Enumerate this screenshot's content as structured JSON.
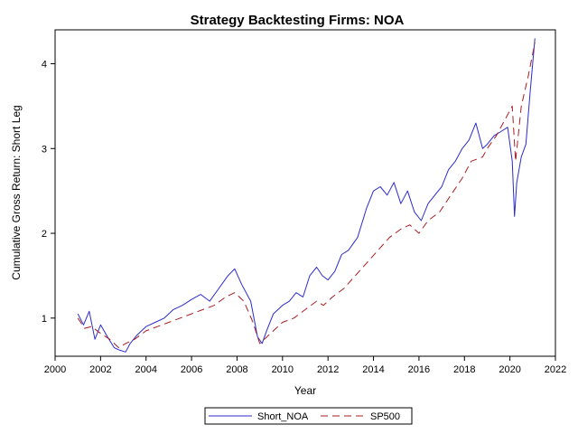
{
  "chart_data": {
    "type": "line",
    "title": "Strategy Backtesting  Firms: NOA",
    "xlabel": "Year",
    "ylabel": "Cumulative Gross Return: Short Leg",
    "xlim": [
      2000,
      2022
    ],
    "ylim": [
      0.55,
      4.4
    ],
    "x_ticks": [
      2000,
      2002,
      2004,
      2006,
      2008,
      2010,
      2012,
      2014,
      2016,
      2018,
      2020,
      2022
    ],
    "y_ticks": [
      1,
      2,
      3,
      4
    ],
    "x_tick_labels": [
      "2000",
      "2002",
      "2004",
      "2006",
      "2008",
      "2010",
      "2012",
      "2014",
      "2016",
      "2018",
      "2020",
      "2022"
    ],
    "y_tick_labels": [
      "1",
      "2",
      "3",
      "4"
    ],
    "grid": false,
    "legend_position": "bottom",
    "series": [
      {
        "name": "Short_NOA",
        "color": "#2b2bcf",
        "style": "solid",
        "x": [
          2001.0,
          2001.25,
          2001.5,
          2001.75,
          2002.0,
          2002.3,
          2002.6,
          2002.85,
          2003.1,
          2003.3,
          2003.6,
          2004.0,
          2004.4,
          2004.8,
          2005.2,
          2005.6,
          2006.0,
          2006.4,
          2006.8,
          2007.2,
          2007.6,
          2007.9,
          2008.2,
          2008.6,
          2008.9,
          2009.1,
          2009.3,
          2009.6,
          2010.0,
          2010.3,
          2010.6,
          2010.9,
          2011.2,
          2011.5,
          2011.75,
          2012.0,
          2012.3,
          2012.6,
          2012.9,
          2013.3,
          2013.7,
          2014.0,
          2014.3,
          2014.6,
          2014.9,
          2015.2,
          2015.5,
          2015.8,
          2016.1,
          2016.4,
          2016.7,
          2017.0,
          2017.3,
          2017.6,
          2017.9,
          2018.2,
          2018.5,
          2018.8,
          2019.0,
          2019.3,
          2019.6,
          2019.9,
          2020.1,
          2020.2,
          2020.3,
          2020.5,
          2020.7,
          2020.9,
          2021.1
        ],
        "values": [
          1.05,
          0.92,
          1.08,
          0.75,
          0.92,
          0.78,
          0.65,
          0.62,
          0.6,
          0.7,
          0.8,
          0.9,
          0.95,
          1.0,
          1.1,
          1.15,
          1.22,
          1.28,
          1.2,
          1.35,
          1.5,
          1.58,
          1.4,
          1.2,
          0.78,
          0.7,
          0.85,
          1.05,
          1.15,
          1.2,
          1.3,
          1.25,
          1.5,
          1.6,
          1.5,
          1.45,
          1.55,
          1.75,
          1.8,
          1.95,
          2.3,
          2.5,
          2.55,
          2.45,
          2.6,
          2.35,
          2.5,
          2.25,
          2.15,
          2.35,
          2.45,
          2.55,
          2.75,
          2.85,
          3.0,
          3.1,
          3.3,
          3.0,
          3.05,
          3.15,
          3.2,
          3.25,
          2.85,
          2.2,
          2.6,
          2.9,
          3.05,
          3.7,
          4.3
        ]
      },
      {
        "name": "SP500",
        "color": "#a81c22",
        "style": "dashed",
        "x": [
          2001.0,
          2001.3,
          2001.6,
          2002.0,
          2002.4,
          2002.8,
          2003.1,
          2003.5,
          2004.0,
          2004.5,
          2005.0,
          2005.5,
          2006.0,
          2006.5,
          2007.0,
          2007.5,
          2007.9,
          2008.3,
          2008.7,
          2009.0,
          2009.2,
          2009.6,
          2010.0,
          2010.5,
          2011.0,
          2011.5,
          2011.8,
          2012.2,
          2012.7,
          2013.2,
          2013.7,
          2014.2,
          2014.7,
          2015.2,
          2015.6,
          2016.0,
          2016.4,
          2016.9,
          2017.4,
          2017.9,
          2018.3,
          2018.8,
          2019.0,
          2019.4,
          2019.8,
          2020.1,
          2020.25,
          2020.5,
          2020.8,
          2021.1
        ],
        "values": [
          1.0,
          0.88,
          0.9,
          0.82,
          0.75,
          0.65,
          0.7,
          0.75,
          0.85,
          0.9,
          0.95,
          1.0,
          1.05,
          1.1,
          1.15,
          1.25,
          1.3,
          1.2,
          0.95,
          0.7,
          0.75,
          0.85,
          0.95,
          1.0,
          1.1,
          1.2,
          1.15,
          1.25,
          1.35,
          1.5,
          1.65,
          1.8,
          1.95,
          2.05,
          2.1,
          2.0,
          2.15,
          2.25,
          2.45,
          2.65,
          2.85,
          2.9,
          3.0,
          3.15,
          3.35,
          3.5,
          2.85,
          3.5,
          3.85,
          4.25
        ]
      }
    ]
  }
}
